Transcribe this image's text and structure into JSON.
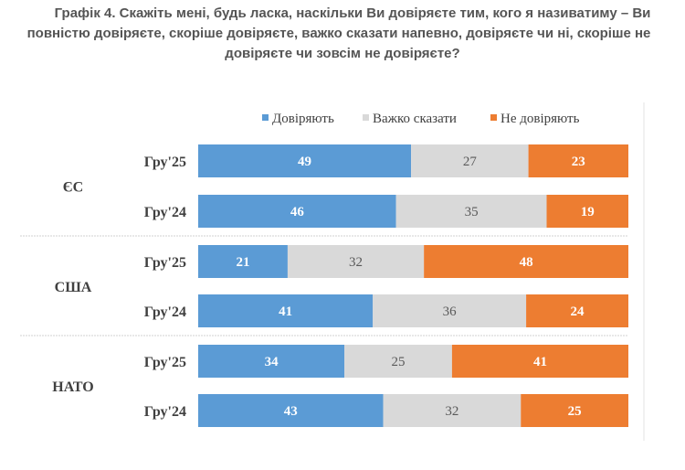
{
  "title": {
    "line1": "Графік 4. Скажіть мені, будь ласка, наскільки Ви довіряєте тим, кого я називатиму – Ви",
    "line2": "повністю довіряєте, скоріше довіряєте, важко сказати напевно, довіряєте чи ні, скоріше не",
    "line3": "довіряєте чи зовсім не довіряєте?"
  },
  "chart_data": {
    "type": "bar",
    "orientation": "horizontal",
    "stacked": true,
    "unit": "%",
    "title": "Графік 4. Скажіть мені, будь ласка, наскільки Ви довіряєте тим, кого я називатиму – Ви повністю довіряєте, скоріше довіряєте, важко сказати напевно, довіряєте чи ні, скоріше не довіряєте чи зовсім не довіряєте?",
    "legend_position": "top",
    "xlim": [
      0,
      100
    ],
    "groups": [
      {
        "name": "ЄС",
        "rows": [
          {
            "label": "Гру'25",
            "values": [
              49,
              27,
              23
            ]
          },
          {
            "label": "Гру'24",
            "values": [
              46,
              35,
              19
            ]
          }
        ]
      },
      {
        "name": "США",
        "rows": [
          {
            "label": "Гру'25",
            "values": [
              21,
              32,
              48
            ]
          },
          {
            "label": "Гру'24",
            "values": [
              41,
              36,
              24
            ]
          }
        ]
      },
      {
        "name": "НАТО",
        "rows": [
          {
            "label": "Гру'25",
            "values": [
              34,
              25,
              41
            ]
          },
          {
            "label": "Гру'24",
            "values": [
              43,
              32,
              25
            ]
          }
        ]
      }
    ],
    "series": [
      {
        "name": "Довіряють",
        "color": "#5b9bd5",
        "label_color": "#ffffff",
        "label_bold": true
      },
      {
        "name": "Важко сказати",
        "color": "#d9d9d9",
        "label_color": "#595959",
        "label_bold": false
      },
      {
        "name": "Не  довіряють",
        "color": "#ed7d31",
        "label_color": "#ffffff",
        "label_bold": true
      }
    ]
  }
}
